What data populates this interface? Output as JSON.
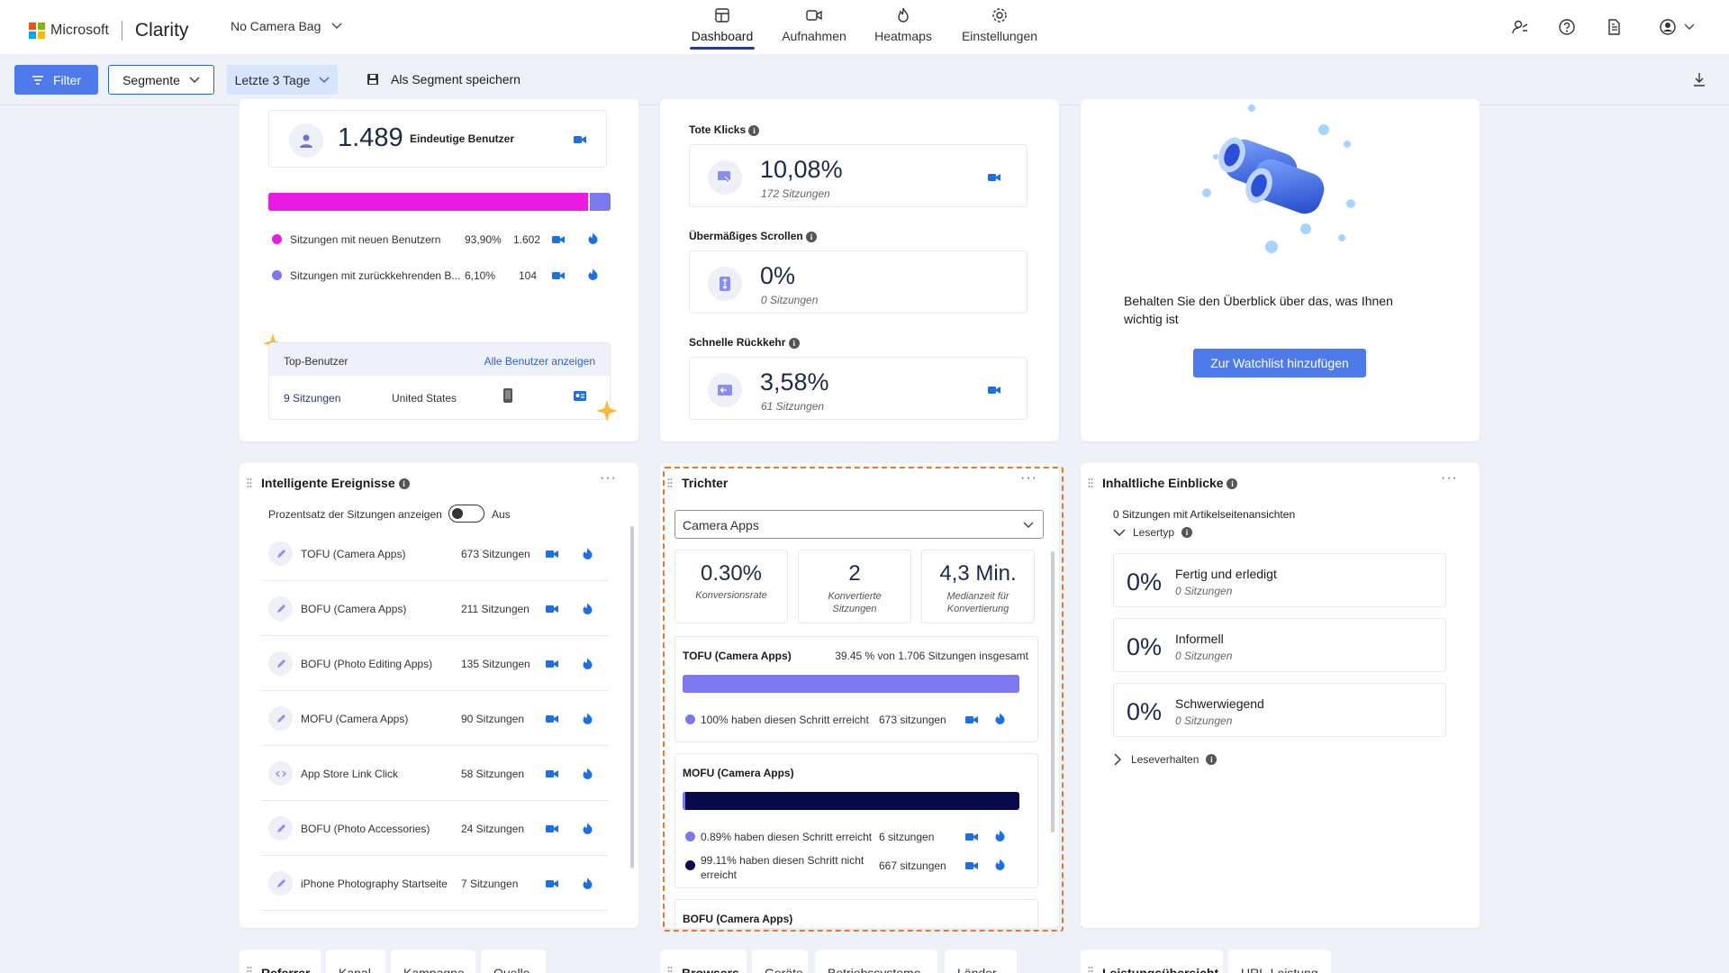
{
  "brand": {
    "microsoft": "Microsoft",
    "product": "Clarity",
    "colors": [
      "#f25022",
      "#7fba00",
      "#00a4ef",
      "#ffb900"
    ]
  },
  "project": {
    "name": "No Camera Bag"
  },
  "nav": {
    "tabs": [
      {
        "label": "Dashboard",
        "icon": "dashboard-icon",
        "active": true
      },
      {
        "label": "Aufnahmen",
        "icon": "video-camera-icon"
      },
      {
        "label": "Heatmaps",
        "icon": "flame-icon"
      },
      {
        "label": "Einstellungen",
        "icon": "gear-icon"
      }
    ],
    "right_icons": [
      "share-users-icon",
      "help-icon",
      "document-icon",
      "account-icon"
    ]
  },
  "toolbar": {
    "filter": "Filter",
    "segments": "Segmente",
    "date_range": "Letzte 3 Tage",
    "save_segment": "Als Segment speichern",
    "download_icon": "download-icon"
  },
  "users_card": {
    "count": "1.489",
    "count_label": "Eindeutige Benutzer",
    "new_users_share": 0.939,
    "legend": [
      {
        "label": "Sitzungen mit neuen Benutzern",
        "pct": "93,90%",
        "count": "1.602",
        "color": "#e81be0"
      },
      {
        "label": "Sitzungen mit zurückkehrenden B...",
        "pct": "6,10%",
        "count": "104",
        "color": "#7b78f0"
      }
    ],
    "top_users": {
      "title": "Top-Benutzer",
      "link": "Alle Benutzer anzeigen",
      "row": {
        "sessions": "9 Sitzungen",
        "country": "United States"
      }
    }
  },
  "behavior_card": {
    "metrics": [
      {
        "title": "Tote Klicks",
        "value": "10,08%",
        "sub": "172 Sitzungen",
        "icon": "dead-click-icon"
      },
      {
        "title": "Übermäßiges Scrollen",
        "value": "0%",
        "sub": "0 Sitzungen",
        "icon": "scroll-icon"
      },
      {
        "title": "Schnelle Rückkehr",
        "value": "3,58%",
        "sub": "61 Sitzungen",
        "icon": "quick-back-icon"
      }
    ]
  },
  "watchlist_card": {
    "message": "Behalten Sie den Überblick über das, was Ihnen wichtig ist",
    "button": "Zur Watchlist hinzufügen"
  },
  "smart_events": {
    "title": "Intelligente Ereignisse",
    "toggle_label": "Prozentsatz der Sitzungen anzeigen",
    "toggle_state": "Aus",
    "rows": [
      {
        "label": "TOFU (Camera Apps)",
        "count": "673 Sitzungen",
        "icon": "pencil-icon"
      },
      {
        "label": "BOFU (Camera Apps)",
        "count": "211 Sitzungen",
        "icon": "pencil-icon"
      },
      {
        "label": "BOFU (Photo Editing Apps)",
        "count": "135 Sitzungen",
        "icon": "pencil-icon"
      },
      {
        "label": "MOFU (Camera Apps)",
        "count": "90 Sitzungen",
        "icon": "pencil-icon"
      },
      {
        "label": "App Store Link Click",
        "count": "58 Sitzungen",
        "icon": "code-icon"
      },
      {
        "label": "BOFU (Photo Accessories)",
        "count": "24 Sitzungen",
        "icon": "pencil-icon"
      },
      {
        "label": "iPhone Photography Startseite",
        "count": "7 Sitzungen",
        "icon": "pencil-icon"
      }
    ]
  },
  "funnel": {
    "title": "Trichter",
    "select": "Camera Apps",
    "stats": [
      {
        "value": "0.30%",
        "label": "Konversionsrate"
      },
      {
        "value": "2",
        "label": "Konvertierte Sitzungen"
      },
      {
        "value": "4,3 Min.",
        "label": "Medianzeit für Konvertierung"
      }
    ],
    "steps": [
      {
        "name": "TOFU (Camera Apps)",
        "total": "39.45 % von 1.706 Sitzungen insgesamt",
        "reached": 1.0,
        "rows": [
          {
            "label": "100% haben diesen Schritt erreicht",
            "count": "673 sitzungen",
            "color": "#7b78f0"
          }
        ]
      },
      {
        "name": "MOFU (Camera Apps)",
        "reached": 0.0089,
        "rows": [
          {
            "label": "0.89% haben diesen Schritt erreicht",
            "count": "6 sitzungen",
            "color": "#7b78f0"
          },
          {
            "label": "99.11% haben diesen Schritt nicht erreicht",
            "count": "667 sitzungen",
            "color": "#0a0a4a"
          }
        ]
      },
      {
        "name": "BOFU (Camera Apps)"
      }
    ]
  },
  "content_insights": {
    "title": "Inhaltliche Einblicke",
    "sessions_note": "0 Sitzungen mit Artikelseitenansichten",
    "reader_type": "Lesertyp",
    "items": [
      {
        "value": "0%",
        "name": "Fertig und erledigt",
        "sub": "0 Sitzungen"
      },
      {
        "value": "0%",
        "name": "Informell",
        "sub": "0 Sitzungen"
      },
      {
        "value": "0%",
        "name": "Schwerwiegend",
        "sub": "0 Sitzungen"
      }
    ],
    "reading_behavior": "Leseverhalten"
  },
  "bottom_tabs": {
    "group1": [
      "Referrer",
      "Kanal",
      "Kampagne",
      "Quelle"
    ],
    "group2": [
      "Browsers",
      "Geräte",
      "Betriebssysteme",
      "Länder"
    ],
    "group3": [
      "Leistungsübersicht",
      "URL-Leistung"
    ]
  }
}
